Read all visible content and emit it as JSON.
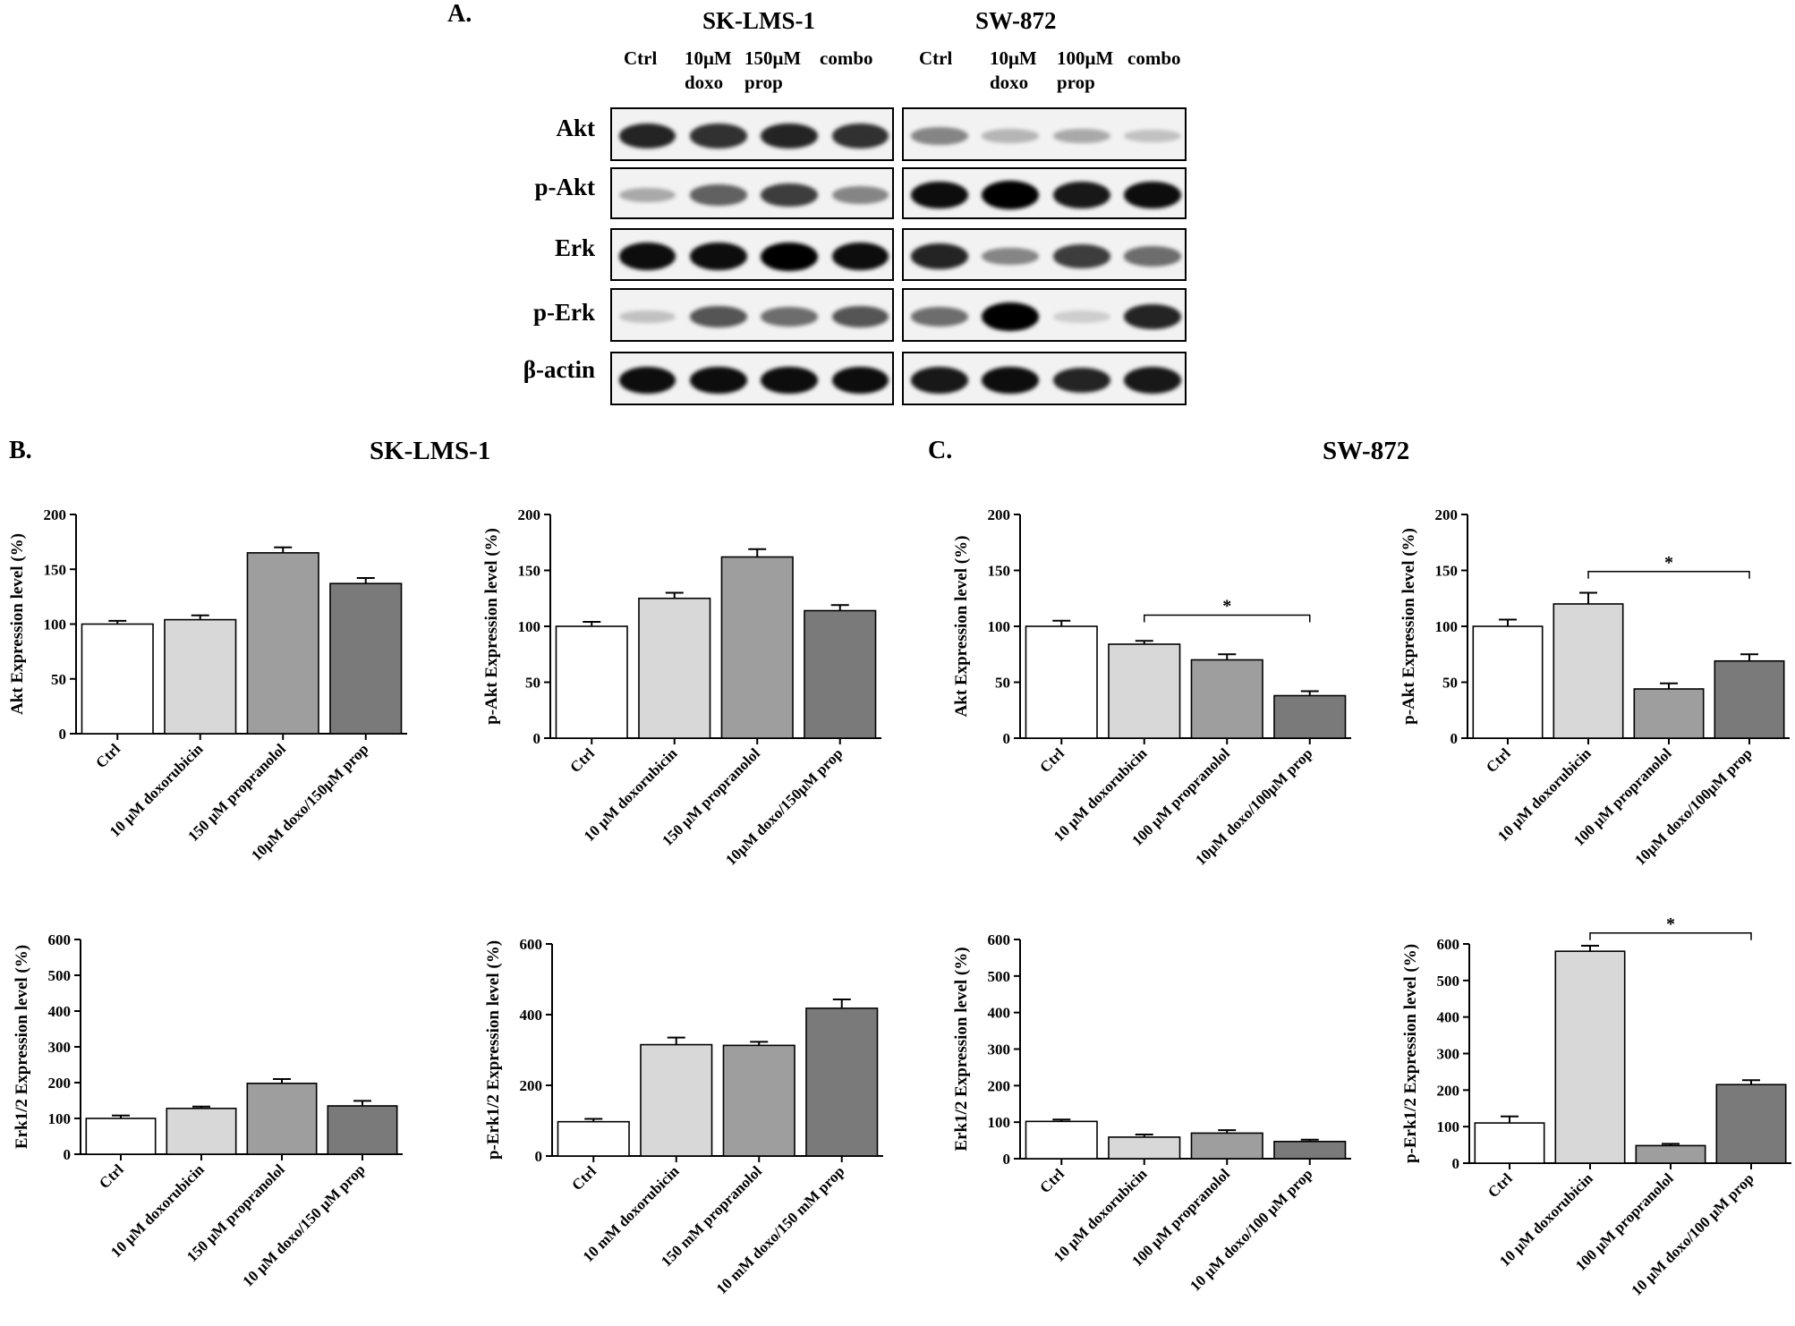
{
  "figure": {
    "panel_a": {
      "letter": "A.",
      "cell_lines": [
        {
          "name": "SK-LMS-1",
          "lanes": [
            "Ctrl",
            "10μM doxo",
            "150μM prop",
            "combo"
          ],
          "intensities": {
            "Akt": [
              0.85,
              0.8,
              0.85,
              0.8
            ],
            "p-Akt": [
              0.3,
              0.6,
              0.75,
              0.45
            ],
            "Erk": [
              0.95,
              0.95,
              1.0,
              0.95
            ],
            "p-Erk": [
              0.2,
              0.65,
              0.55,
              0.65
            ],
            "β-actin": [
              0.95,
              0.95,
              0.95,
              0.95
            ]
          }
        },
        {
          "name": "SW-872",
          "lanes": [
            "Ctrl",
            "10μM doxo",
            "100μM prop",
            "combo"
          ],
          "intensities": {
            "Akt": [
              0.45,
              0.25,
              0.3,
              0.2
            ],
            "p-Akt": [
              0.95,
              1.0,
              0.9,
              0.95
            ],
            "Erk": [
              0.85,
              0.45,
              0.75,
              0.55
            ],
            "p-Erk": [
              0.55,
              1.0,
              0.15,
              0.85
            ],
            "β-actin": [
              0.9,
              0.95,
              0.85,
              0.9
            ]
          }
        }
      ],
      "proteins": [
        "Akt",
        "p-Akt",
        "Erk",
        "p-Erk",
        "β-actin"
      ]
    },
    "panel_b": {
      "letter": "B.",
      "title": "SK-LMS-1"
    },
    "panel_c": {
      "letter": "C.",
      "title": "SW-872"
    }
  },
  "chart_data": [
    {
      "id": "b1",
      "type": "bar",
      "title": "",
      "ylabel": "Akt Expression level (%)",
      "ylim": [
        0,
        200
      ],
      "yticks": [
        0,
        50,
        100,
        150,
        200
      ],
      "categories": [
        "Ctrl",
        "10 μM doxorubicin",
        "150 μM propranolol",
        "10μM doxo/150μM prop"
      ],
      "values": [
        100,
        104,
        165,
        137
      ],
      "errors": [
        3,
        4,
        5,
        5
      ],
      "significance": []
    },
    {
      "id": "b2",
      "type": "bar",
      "title": "",
      "ylabel": "p-Akt Expression level (%)",
      "ylim": [
        0,
        200
      ],
      "yticks": [
        0,
        50,
        100,
        150,
        200
      ],
      "categories": [
        "Ctrl",
        "10 μM doxorubicin",
        "150 μM propranolol",
        "10μM doxo/150μM prop"
      ],
      "values": [
        100,
        125,
        162,
        114
      ],
      "errors": [
        4,
        5,
        7,
        5
      ],
      "significance": []
    },
    {
      "id": "c1",
      "type": "bar",
      "title": "",
      "ylabel": "Akt Expression level (%)",
      "ylim": [
        0,
        200
      ],
      "yticks": [
        0,
        50,
        100,
        150,
        200
      ],
      "categories": [
        "Ctrl",
        "10 μM doxorubicin",
        "100 μM propranolol",
        "10μM doxo/100μM prop"
      ],
      "values": [
        100,
        84,
        70,
        38
      ],
      "errors": [
        5,
        3,
        5,
        4
      ],
      "significance": [
        {
          "from": 1,
          "to": 3,
          "y": 110,
          "label": "*"
        }
      ]
    },
    {
      "id": "c2",
      "type": "bar",
      "title": "",
      "ylabel": "p-Akt Expression level (%)",
      "ylim": [
        0,
        200
      ],
      "yticks": [
        0,
        50,
        100,
        150,
        200
      ],
      "categories": [
        "Ctrl",
        "10 μM doxorubicin",
        "100 μM propranolol",
        "10μM doxo/100μM prop"
      ],
      "values": [
        100,
        120,
        44,
        69
      ],
      "errors": [
        6,
        10,
        5,
        6
      ],
      "significance": [
        {
          "from": 1,
          "to": 3,
          "y": 149,
          "label": "*"
        }
      ]
    },
    {
      "id": "b3",
      "type": "bar",
      "title": "",
      "ylabel": "Erk1/2 Expression level (%)",
      "ylim": [
        0,
        600
      ],
      "yticks": [
        0,
        100,
        200,
        300,
        400,
        500,
        600
      ],
      "categories": [
        "Ctrl",
        "10 μM doxorubicin",
        "150 μM propranolol",
        "10 μM doxo/150 μM prop"
      ],
      "values": [
        100,
        128,
        198,
        135
      ],
      "errors": [
        8,
        5,
        12,
        14
      ],
      "significance": []
    },
    {
      "id": "b4",
      "type": "bar",
      "title": "",
      "ylabel": "p-Erk1/2 Expression level (%)",
      "ylim": [
        0,
        600
      ],
      "yticks": [
        0,
        200,
        400,
        600
      ],
      "categories": [
        "Ctrl",
        "10 mM doxorubicin",
        "150 mM propranolol",
        "10 mM doxo/150  mM prop"
      ],
      "values": [
        97,
        315,
        313,
        418
      ],
      "errors": [
        8,
        20,
        10,
        25
      ],
      "significance": []
    },
    {
      "id": "c3",
      "type": "bar",
      "title": "",
      "ylabel": "Erk1/2 Expression level (%)",
      "ylim": [
        0,
        600
      ],
      "yticks": [
        0,
        100,
        200,
        300,
        400,
        500,
        600
      ],
      "categories": [
        "Ctrl",
        "10 μM doxorubicin",
        "100 μM propranolol",
        "10 μM doxo/100 μM prop"
      ],
      "values": [
        102,
        59,
        70,
        47
      ],
      "errors": [
        5,
        7,
        8,
        5
      ],
      "significance": []
    },
    {
      "id": "c4",
      "type": "bar",
      "title": "",
      "ylabel": "p-Erk1/2 Expression level (%)",
      "ylim": [
        0,
        600
      ],
      "yticks": [
        0,
        100,
        200,
        300,
        400,
        500,
        600
      ],
      "categories": [
        "Ctrl",
        "10 μM doxorubicin",
        "100 μM propranolol",
        "10 μM doxo/100 μM prop"
      ],
      "values": [
        110,
        580,
        48,
        215
      ],
      "errors": [
        18,
        15,
        5,
        12
      ],
      "significance": [
        {
          "from": 1,
          "to": 3,
          "y": 630,
          "label": "*"
        }
      ]
    }
  ]
}
